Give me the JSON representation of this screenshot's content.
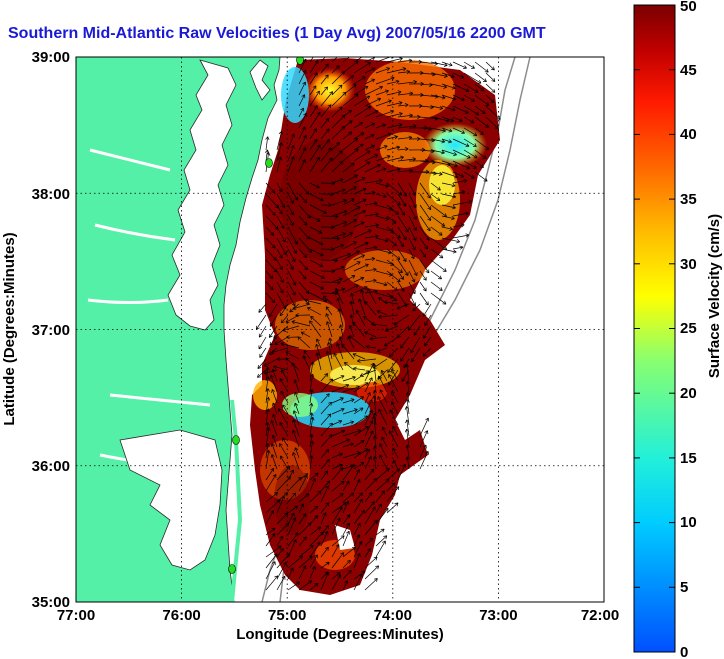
{
  "title": "Southern Mid-Atlantic Raw Velocities (1 Day Avg) 2007/05/16 2200 GMT",
  "xaxis": {
    "label": "Longitude (Degrees:Minutes)",
    "ticks": [
      "77:00",
      "76:00",
      "75:00",
      "74:00",
      "73:00",
      "72:00"
    ],
    "range": [
      -77,
      -72
    ]
  },
  "yaxis": {
    "label": "Latitude (Degrees:Minutes)",
    "ticks": [
      "35:00",
      "36:00",
      "37:00",
      "38:00",
      "39:00"
    ],
    "range": [
      35,
      39
    ]
  },
  "colorbar": {
    "label": "Surface Velocity (cm/s)",
    "ticks": [
      "0",
      "5",
      "10",
      "15",
      "20",
      "25",
      "30",
      "35",
      "40",
      "45",
      "50"
    ],
    "range": [
      0,
      50
    ],
    "colormap": "jet"
  },
  "colors": {
    "land": "#55f0a8",
    "grid": "#000000",
    "title": "#1a1ad6",
    "site_marker": "#22dd22",
    "bathymetry": "#8c8c8c"
  },
  "grid": true
}
